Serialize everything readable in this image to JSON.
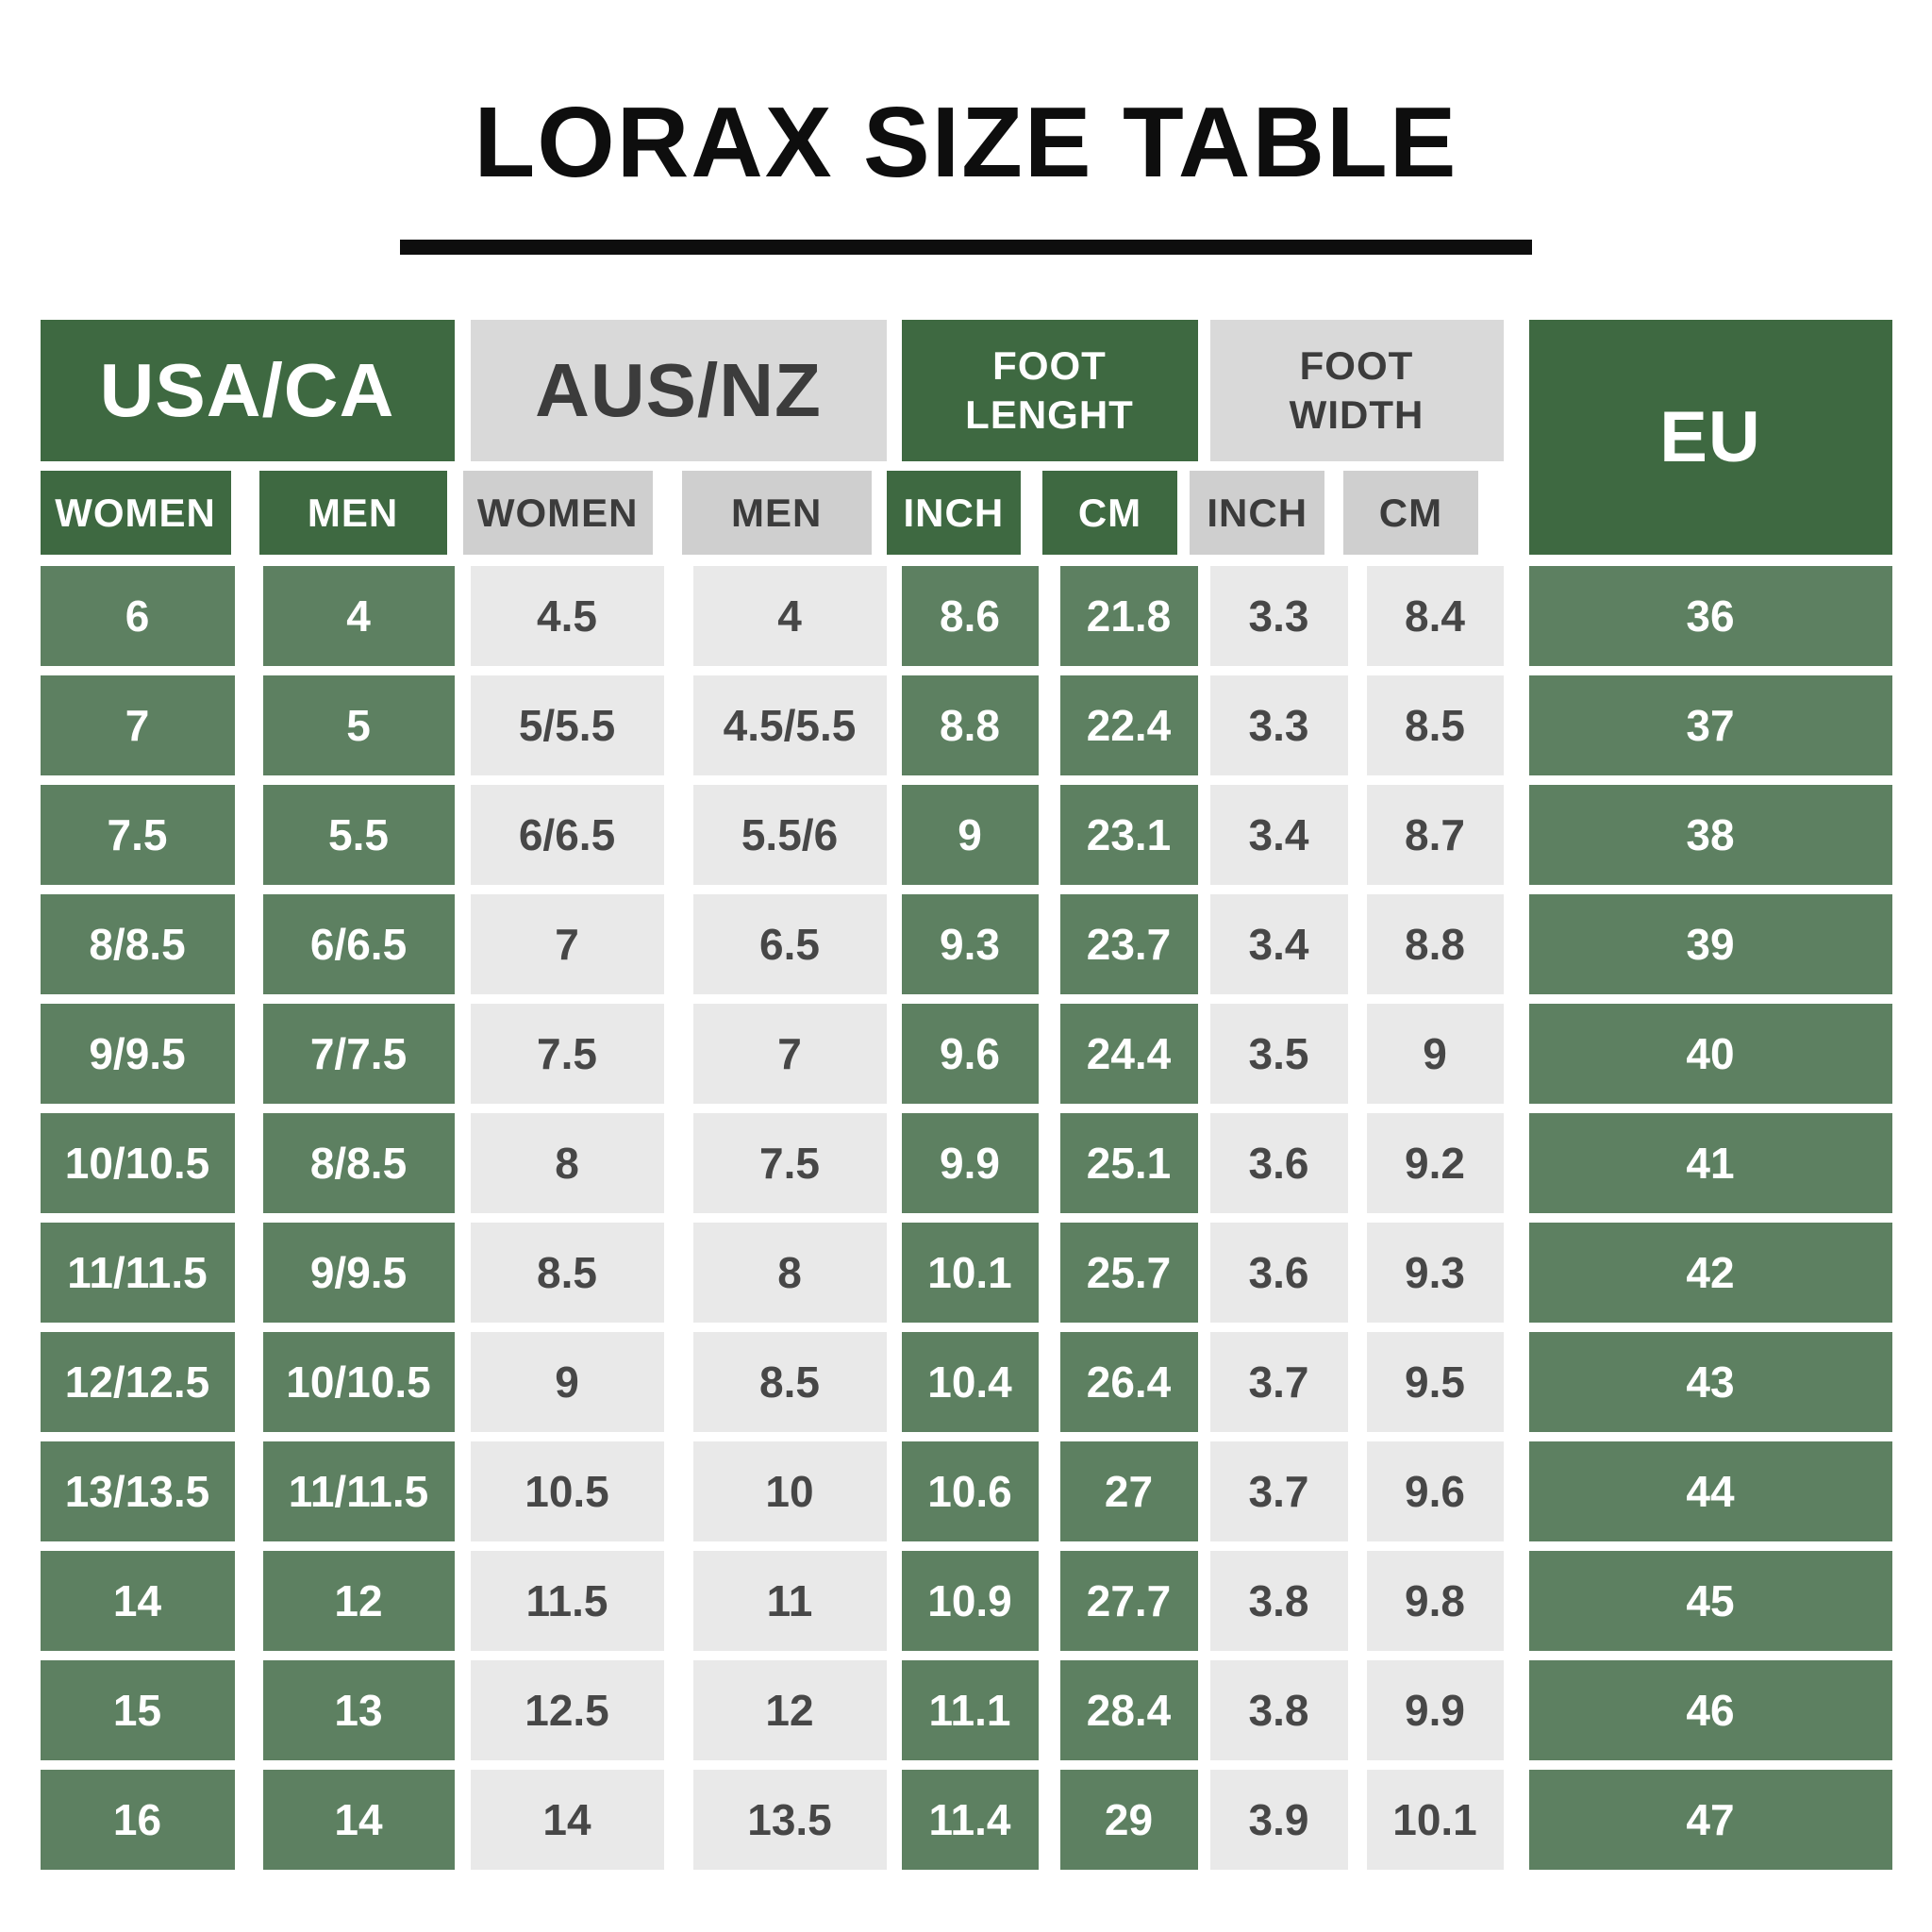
{
  "title": "LORAX SIZE TABLE",
  "header": {
    "groups": [
      {
        "label": "USA/CA",
        "lines": [
          "USA/CA"
        ],
        "theme": "green",
        "sub": [
          "WOMEN",
          "MEN"
        ]
      },
      {
        "label": "AUS/NZ",
        "lines": [
          "AUS/NZ"
        ],
        "theme": "gray",
        "sub": [
          "WOMEN",
          "MEN"
        ]
      },
      {
        "label": "FOOT LENGHT",
        "lines": [
          "FOOT",
          "LENGHT"
        ],
        "theme": "green",
        "sub": [
          "INCH",
          "CM"
        ]
      },
      {
        "label": "FOOT WIDTH",
        "lines": [
          "FOOT",
          "WIDTH"
        ],
        "theme": "gray",
        "sub": [
          "INCH",
          "CM"
        ]
      },
      {
        "label": "EU",
        "lines": [
          "EU"
        ],
        "theme": "green",
        "sub": []
      }
    ],
    "column_themes": [
      "green",
      "green",
      "gray",
      "gray",
      "green",
      "green",
      "gray",
      "gray",
      "green"
    ]
  },
  "chart_data": {
    "type": "table",
    "title": "LORAX SIZE TABLE",
    "columns": [
      "USA/CA WOMEN",
      "USA/CA MEN",
      "AUS/NZ WOMEN",
      "AUS/NZ MEN",
      "FOOT LENGHT INCH",
      "FOOT LENGHT CM",
      "FOOT WIDTH INCH",
      "FOOT WIDTH CM",
      "EU"
    ],
    "rows": [
      [
        "6",
        "4",
        "4.5",
        "4",
        "8.6",
        "21.8",
        "3.3",
        "8.4",
        "36"
      ],
      [
        "7",
        "5",
        "5/5.5",
        "4.5/5.5",
        "8.8",
        "22.4",
        "3.3",
        "8.5",
        "37"
      ],
      [
        "7.5",
        "5.5",
        "6/6.5",
        "5.5/6",
        "9",
        "23.1",
        "3.4",
        "8.7",
        "38"
      ],
      [
        "8/8.5",
        "6/6.5",
        "7",
        "6.5",
        "9.3",
        "23.7",
        "3.4",
        "8.8",
        "39"
      ],
      [
        "9/9.5",
        "7/7.5",
        "7.5",
        "7",
        "9.6",
        "24.4",
        "3.5",
        "9",
        "40"
      ],
      [
        "10/10.5",
        "8/8.5",
        "8",
        "7.5",
        "9.9",
        "25.1",
        "3.6",
        "9.2",
        "41"
      ],
      [
        "11/11.5",
        "9/9.5",
        "8.5",
        "8",
        "10.1",
        "25.7",
        "3.6",
        "9.3",
        "42"
      ],
      [
        "12/12.5",
        "10/10.5",
        "9",
        "8.5",
        "10.4",
        "26.4",
        "3.7",
        "9.5",
        "43"
      ],
      [
        "13/13.5",
        "11/11.5",
        "10.5",
        "10",
        "10.6",
        "27",
        "3.7",
        "9.6",
        "44"
      ],
      [
        "14",
        "12",
        "11.5",
        "11",
        "10.9",
        "27.7",
        "3.8",
        "9.8",
        "45"
      ],
      [
        "15",
        "13",
        "12.5",
        "12",
        "11.1",
        "28.4",
        "3.8",
        "9.9",
        "46"
      ],
      [
        "16",
        "14",
        "14",
        "13.5",
        "11.4",
        "29",
        "3.9",
        "10.1",
        "47"
      ]
    ]
  },
  "colors": {
    "green_dark": "#3e6941",
    "green_light": "#5d8061",
    "gray_header": "#d9d9d9",
    "gray_subheader": "#cfcfcf",
    "gray_light": "#e9e9e9",
    "ink_dark": "#3c3c3c",
    "text_on_gray": "#474747",
    "title_color": "#0e0e0e"
  }
}
